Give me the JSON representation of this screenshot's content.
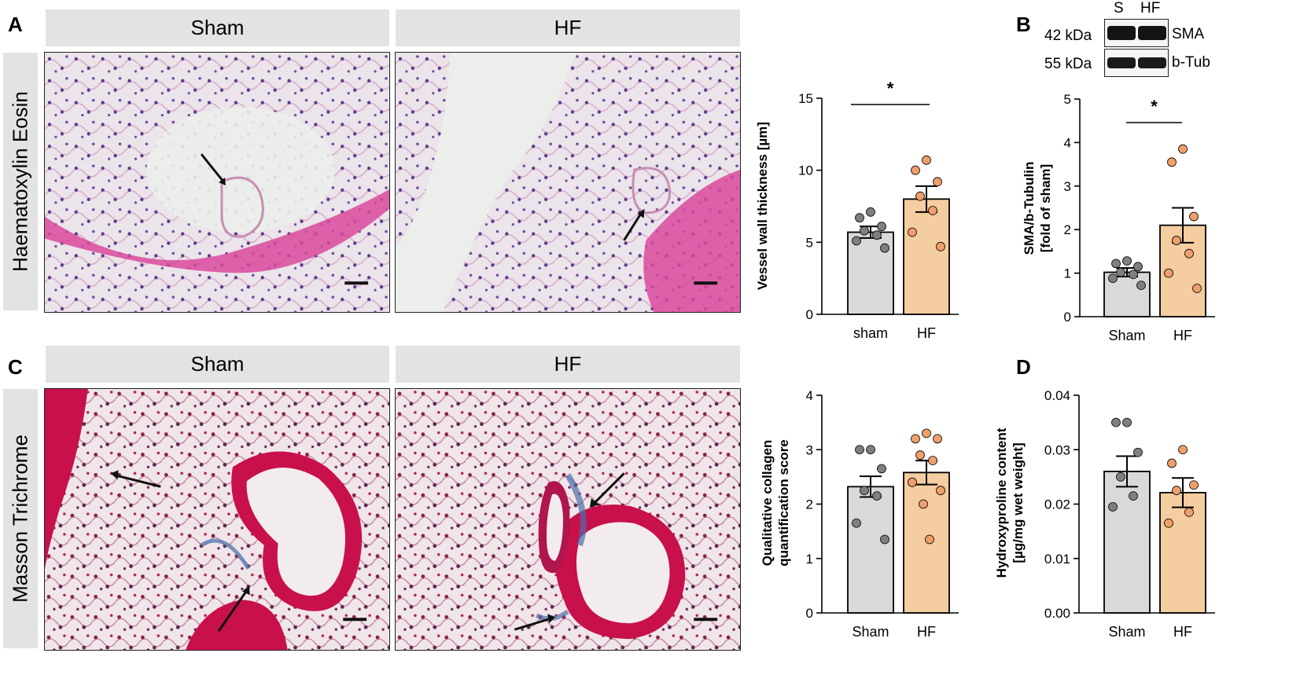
{
  "panels": {
    "A": {
      "letter": "A",
      "col_headers": [
        "Sham",
        "HF"
      ],
      "row_header": "Haematoxylin Eosin"
    },
    "B": {
      "letter": "B",
      "lane_labels": [
        "S",
        "HF"
      ],
      "mw_labels": [
        "42 kDa",
        "55 kDa"
      ],
      "protein_labels": [
        "SMA",
        "b-Tub"
      ]
    },
    "C": {
      "letter": "C",
      "col_headers": [
        "Sham",
        "HF"
      ],
      "row_header": "Masson Trichrome"
    },
    "D": {
      "letter": "D"
    }
  },
  "colors": {
    "sham_bar": "#d9d9d9",
    "hf_bar": "#f4cda0",
    "sham_dot": "#7f7f7f",
    "hf_dot": "#ee9f6a",
    "header_bg": "#e3e3e3"
  },
  "chart_data": [
    {
      "id": "vessel",
      "type": "bar",
      "categories": [
        "sham",
        "HF"
      ],
      "ylabel": "Vessel wall thickness [µm]",
      "ylim": [
        0,
        15
      ],
      "yticks": [
        0,
        5,
        10,
        15
      ],
      "values": [
        5.7,
        8.0
      ],
      "sem": [
        0.4,
        0.9
      ],
      "points": [
        [
          7.1,
          6.7,
          6.1,
          5.8,
          5.5,
          5.1,
          4.6
        ],
        [
          10.7,
          10.0,
          9.2,
          8.2,
          7.2,
          5.7,
          4.7
        ]
      ],
      "significance": "*"
    },
    {
      "id": "sma",
      "type": "bar",
      "categories": [
        "Sham",
        "HF"
      ],
      "ylabel": "SMA/b-Tubulin\n[fold of sham]",
      "ylim": [
        0,
        5
      ],
      "yticks": [
        0,
        1,
        2,
        3,
        4,
        5
      ],
      "values": [
        1.02,
        2.1
      ],
      "sem": [
        0.1,
        0.4
      ],
      "points": [
        [
          1.28,
          1.22,
          1.15,
          1.02,
          0.97,
          0.88,
          0.72
        ],
        [
          3.85,
          3.55,
          2.3,
          1.75,
          1.45,
          1.0,
          0.65
        ]
      ],
      "significance": "*"
    },
    {
      "id": "collagen",
      "type": "bar",
      "categories": [
        "Sham",
        "HF"
      ],
      "ylabel": "Qualitative collagen\nquantification score",
      "ylim": [
        0,
        4
      ],
      "yticks": [
        0,
        1,
        2,
        3,
        4
      ],
      "values": [
        2.32,
        2.58
      ],
      "sem": [
        0.19,
        0.22
      ],
      "points": [
        [
          3.0,
          3.0,
          2.65,
          2.25,
          2.15,
          1.65,
          1.35
        ],
        [
          3.3,
          3.2,
          3.2,
          2.9,
          2.8,
          2.4,
          2.25,
          2.0,
          1.35
        ]
      ],
      "significance": ""
    },
    {
      "id": "hydroxyproline",
      "type": "bar",
      "categories": [
        "Sham",
        "HF"
      ],
      "ylabel": "Hydroxyproline content\n[µg/mg wet weight]",
      "ylim": [
        0,
        0.04
      ],
      "yticks": [
        "0.00",
        "0.01",
        "0.02",
        "0.03",
        "0.04"
      ],
      "values": [
        0.026,
        0.0221
      ],
      "sem": [
        0.0028,
        0.0027
      ],
      "points": [
        [
          0.035,
          0.035,
          0.0295,
          0.025,
          0.0215,
          0.0195
        ],
        [
          0.03,
          0.0275,
          0.0235,
          0.0225,
          0.0185,
          0.0165
        ]
      ],
      "significance": ""
    }
  ]
}
